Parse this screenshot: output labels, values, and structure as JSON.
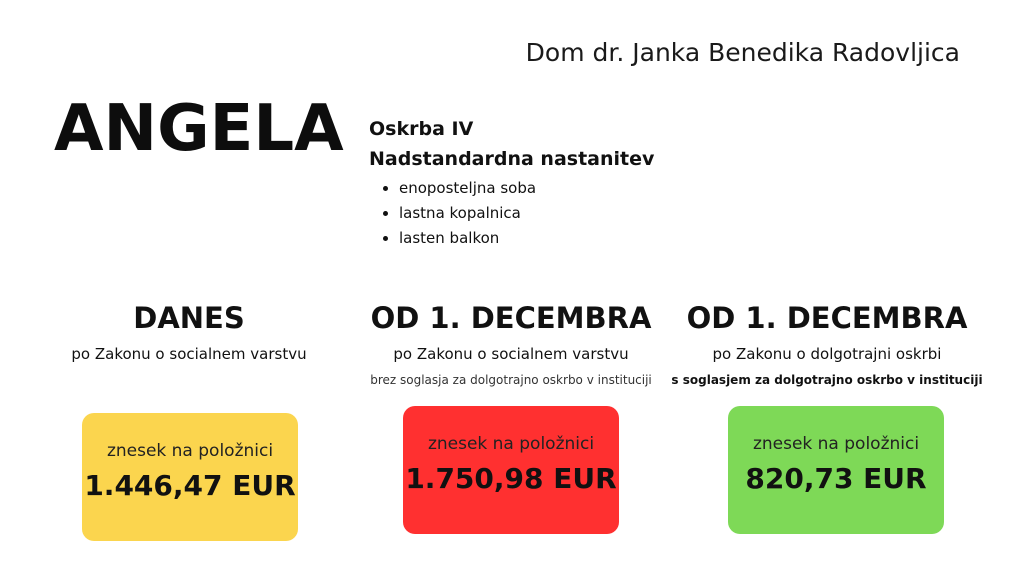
{
  "header": {
    "organization": "Dom dr. Janka Benedika Radovljica"
  },
  "person": {
    "name": "ANGELA"
  },
  "details": {
    "care_level": "Oskrba IV",
    "accommodation": "Nadstandardna nastanitev",
    "features": [
      "enoposteljna soba",
      "lastna kopalnica",
      "lasten balkon"
    ]
  },
  "columns": [
    {
      "heading": "DANES",
      "law": "po Zakonu o socialnem varstvu",
      "condition": "",
      "bill_label": "znesek na položnici",
      "amount": "1.446,47 EUR",
      "color": "#fbd54e"
    },
    {
      "heading": "OD 1. DECEMBRA",
      "law": "po Zakonu o socialnem varstvu",
      "condition": "brez soglasja za dolgotrajno oskrbo v instituciji",
      "bill_label": "znesek na položnici",
      "amount": "1.750,98 EUR",
      "color": "#ff3030"
    },
    {
      "heading": "OD 1. DECEMBRA",
      "law": "po Zakonu o dolgotrajni oskrbi",
      "condition": "s soglasjem za dolgotrajno oskrbo v instituciji",
      "bill_label": "znesek na položnici",
      "amount": "820,73 EUR",
      "color": "#7ed957"
    }
  ]
}
